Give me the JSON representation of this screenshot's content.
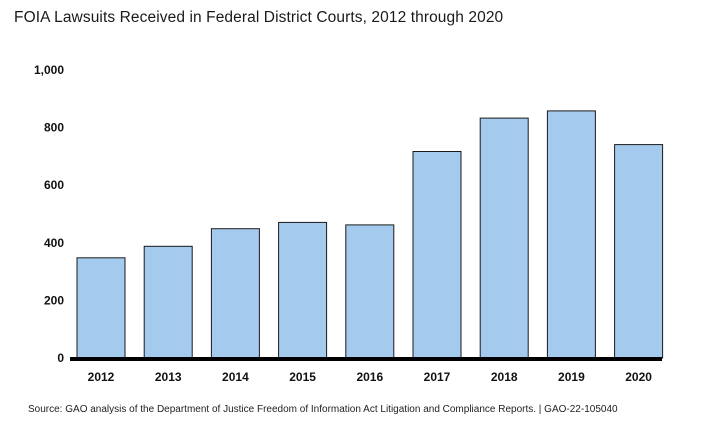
{
  "chart_data": {
    "type": "bar",
    "title": "FOIA Lawsuits Received in Federal District Courts, 2012 through 2020",
    "categories": [
      "2012",
      "2013",
      "2014",
      "2015",
      "2016",
      "2017",
      "2018",
      "2019",
      "2020"
    ],
    "values": [
      348,
      388,
      449,
      471,
      462,
      717,
      833,
      858,
      741
    ],
    "ylim": [
      0,
      1000
    ],
    "yticks": [
      0,
      200,
      400,
      600,
      800,
      1000
    ],
    "ytick_labels": [
      "0",
      "200",
      "400",
      "600",
      "800",
      "1,000"
    ],
    "xlabel": "",
    "ylabel": "",
    "grid": false,
    "legend": "none",
    "source": "Source: GAO analysis of the Department of Justice Freedom of Information Act Litigation and Compliance Reports.  |  GAO-22-105040"
  },
  "colors": {
    "bar_fill": "#A4CBEE",
    "bar_stroke": "#1a1a1a",
    "axis": "#000000"
  }
}
